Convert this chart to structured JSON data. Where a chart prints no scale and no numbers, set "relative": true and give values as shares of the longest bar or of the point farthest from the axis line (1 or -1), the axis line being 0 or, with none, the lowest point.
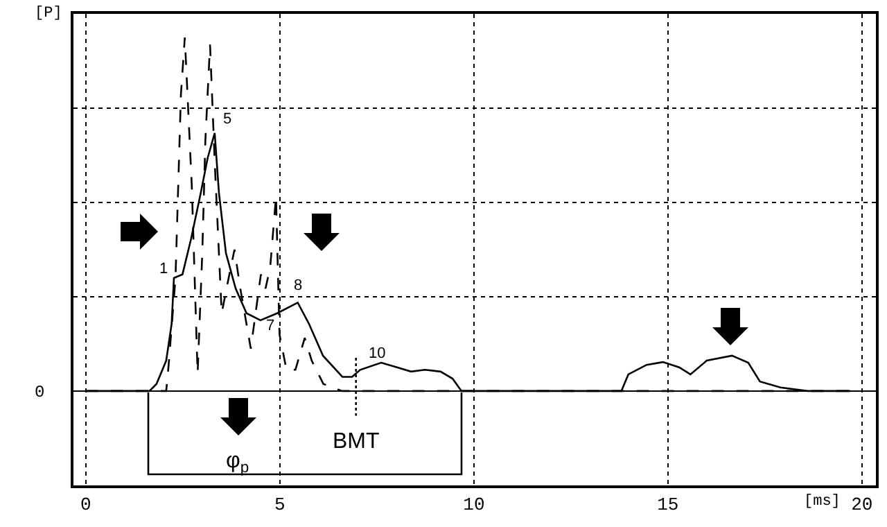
{
  "chart_data": {
    "type": "line",
    "relative": true,
    "xlabel": "[ms]",
    "ylabel": "[P]",
    "xlim": [
      -0.32,
      20.36
    ],
    "xticks": [
      0,
      5,
      10,
      15,
      20
    ],
    "grid": true,
    "marker": "none",
    "series": [
      {
        "color": "#000000",
        "line_style": "solid",
        "x": [
          0,
          1.64,
          1.82,
          2.07,
          2.21,
          2.27,
          2.49,
          2.71,
          2.96,
          3.14,
          3.32,
          3.43,
          3.61,
          3.86,
          4.14,
          4.5,
          4.93,
          5.46,
          5.75,
          6.11,
          6.61,
          6.86,
          7.07,
          7.61,
          8.02,
          8.38,
          8.74,
          9.14,
          9.45,
          9.68,
          13.8,
          13.98,
          14.45,
          14.87,
          15.29,
          15.58,
          16.0,
          16.65,
          17.07,
          17.37,
          17.9,
          18.6,
          19.7
        ],
        "values": [
          0,
          0,
          0.02,
          0.086,
          0.19,
          0.32,
          0.33,
          0.43,
          0.56,
          0.66,
          0.73,
          0.56,
          0.39,
          0.29,
          0.22,
          0.2,
          0.22,
          0.25,
          0.19,
          0.1,
          0.04,
          0.04,
          0.06,
          0.08,
          0.067,
          0.055,
          0.06,
          0.055,
          0.035,
          0,
          0,
          0.047,
          0.074,
          0.082,
          0.067,
          0.047,
          0.086,
          0.1,
          0.08,
          0.027,
          0.01,
          0,
          0
        ]
      },
      {
        "color": "#000000",
        "line_style": "dashed",
        "x": [
          0,
          2.07,
          2.13,
          2.31,
          2.45,
          2.55,
          2.73,
          2.88,
          3.0,
          3.08,
          3.2,
          3.32,
          3.5,
          3.68,
          3.83,
          3.98,
          4.25,
          4.51,
          4.63,
          4.75,
          4.9,
          4.99,
          5.17,
          5.4,
          5.64,
          5.82,
          6.12,
          6.6,
          19.7
        ],
        "values": [
          0,
          0,
          0.07,
          0.32,
          0.84,
          1,
          0.58,
          0.05,
          0.39,
          0.71,
          0.98,
          0.65,
          0.22,
          0.32,
          0.4,
          0.29,
          0.12,
          0.33,
          0.29,
          0.35,
          0.55,
          0.16,
          0.06,
          0.06,
          0.15,
          0.086,
          0.02,
          0,
          0
        ]
      }
    ],
    "ref_lines": [
      {
        "axis": "x",
        "value": 6.96,
        "line_style": "dotted"
      }
    ],
    "annotations": [
      {
        "text": "1",
        "x": 2.27,
        "y": 0.32
      },
      {
        "text": "5",
        "x": 3.32,
        "y": 0.73
      },
      {
        "text": "7",
        "x": 4.5,
        "y": 0.2
      },
      {
        "text": "8",
        "x": 5.46,
        "y": 0.25
      },
      {
        "text": "10",
        "x": 7.07,
        "y": 0.06
      },
      "φ$_{p}$",
      "BMT",
      "0"
    ]
  }
}
